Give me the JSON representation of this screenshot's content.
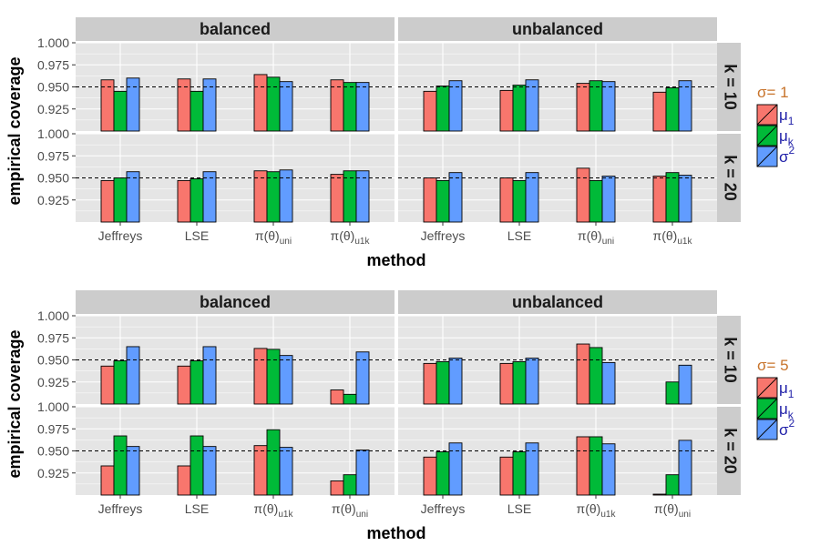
{
  "colors": {
    "mu1": "#F8766D",
    "muk": "#00BA38",
    "sigma2": "#619CFF",
    "legend_title": "#C8742C",
    "legend_label": "#1F1FA8",
    "panel_bg": "#E5E5E5",
    "strip_bg": "#CCCCCC",
    "grid": "#FFFFFF"
  },
  "chart_data": [
    {
      "type": "bar",
      "xlabel": "method",
      "ylabel": "empirical coverage",
      "ylim": [
        0.9,
        1.0
      ],
      "yticks": [
        "0.925",
        "0.950",
        "0.975",
        "1.000"
      ],
      "reference_line": 0.95,
      "legend": {
        "title": "σ= 1",
        "entries": [
          "μ1",
          "μk",
          "σ2"
        ],
        "placement": "right"
      },
      "columns": [
        "balanced",
        "unbalanced"
      ],
      "rows": [
        "k = 10",
        "k = 20"
      ],
      "categories": [
        "Jeffreys",
        "LSE",
        "π(θ)uni",
        "π(θ)u1k"
      ],
      "panels": [
        {
          "design": "balanced",
          "k": "k = 10",
          "series": [
            {
              "name": "μ1",
              "values": [
                0.958,
                0.959,
                0.964,
                0.958
              ]
            },
            {
              "name": "μk",
              "values": [
                0.945,
                0.945,
                0.961,
                0.955
              ]
            },
            {
              "name": "σ2",
              "values": [
                0.96,
                0.959,
                0.956,
                0.955
              ]
            }
          ]
        },
        {
          "design": "unbalanced",
          "k": "k = 10",
          "series": [
            {
              "name": "μ1",
              "values": [
                0.945,
                0.946,
                0.954,
                0.944
              ]
            },
            {
              "name": "μk",
              "values": [
                0.951,
                0.952,
                0.957,
                0.949
              ]
            },
            {
              "name": "σ2",
              "values": [
                0.957,
                0.958,
                0.956,
                0.957
              ]
            }
          ]
        },
        {
          "design": "balanced",
          "k": "k = 20",
          "series": [
            {
              "name": "μ1",
              "values": [
                0.947,
                0.947,
                0.958,
                0.954
              ]
            },
            {
              "name": "μk",
              "values": [
                0.95,
                0.949,
                0.957,
                0.958
              ]
            },
            {
              "name": "σ2",
              "values": [
                0.957,
                0.957,
                0.959,
                0.958
              ]
            }
          ]
        },
        {
          "design": "unbalanced",
          "k": "k = 20",
          "series": [
            {
              "name": "μ1",
              "values": [
                0.95,
                0.95,
                0.961,
                0.952
              ]
            },
            {
              "name": "μk",
              "values": [
                0.947,
                0.947,
                0.947,
                0.956
              ]
            },
            {
              "name": "σ2",
              "values": [
                0.956,
                0.956,
                0.952,
                0.953
              ]
            }
          ]
        }
      ]
    },
    {
      "type": "bar",
      "xlabel": "method",
      "ylabel": "empirical coverage",
      "ylim": [
        0.9,
        1.0
      ],
      "yticks": [
        "0.925",
        "0.950",
        "0.975",
        "1.000"
      ],
      "reference_line": 0.95,
      "legend": {
        "title": "σ= 5",
        "entries": [
          "μ1",
          "μk",
          "σ2"
        ],
        "placement": "right"
      },
      "columns": [
        "balanced",
        "unbalanced"
      ],
      "rows": [
        "k = 10",
        "k = 20"
      ],
      "categories": [
        "Jeffreys",
        "LSE",
        "π(θ)u1k",
        "π(θ)uni"
      ],
      "panels": [
        {
          "design": "balanced",
          "k": "k = 10",
          "series": [
            {
              "name": "μ1",
              "values": [
                0.943,
                0.943,
                0.963,
                0.916
              ]
            },
            {
              "name": "μk",
              "values": [
                0.949,
                0.949,
                0.962,
                0.911
              ]
            },
            {
              "name": "σ2",
              "values": [
                0.965,
                0.965,
                0.955,
                0.959
              ]
            }
          ]
        },
        {
          "design": "unbalanced",
          "k": "k = 10",
          "series": [
            {
              "name": "μ1",
              "values": [
                0.946,
                0.946,
                0.968,
                0.899
              ]
            },
            {
              "name": "μk",
              "values": [
                0.948,
                0.948,
                0.964,
                0.925
              ]
            },
            {
              "name": "σ2",
              "values": [
                0.952,
                0.952,
                0.947,
                0.944
              ]
            }
          ]
        },
        {
          "design": "balanced",
          "k": "k = 20",
          "series": [
            {
              "name": "μ1",
              "values": [
                0.933,
                0.933,
                0.956,
                0.916
              ]
            },
            {
              "name": "μk",
              "values": [
                0.967,
                0.967,
                0.974,
                0.923
              ]
            },
            {
              "name": "σ2",
              "values": [
                0.955,
                0.955,
                0.954,
                0.951
              ]
            }
          ]
        },
        {
          "design": "unbalanced",
          "k": "k = 20",
          "series": [
            {
              "name": "μ1",
              "values": [
                0.943,
                0.943,
                0.966,
                0.901
              ]
            },
            {
              "name": "μk",
              "values": [
                0.949,
                0.949,
                0.966,
                0.923
              ]
            },
            {
              "name": "σ2",
              "values": [
                0.959,
                0.959,
                0.958,
                0.962
              ]
            }
          ]
        }
      ]
    }
  ]
}
